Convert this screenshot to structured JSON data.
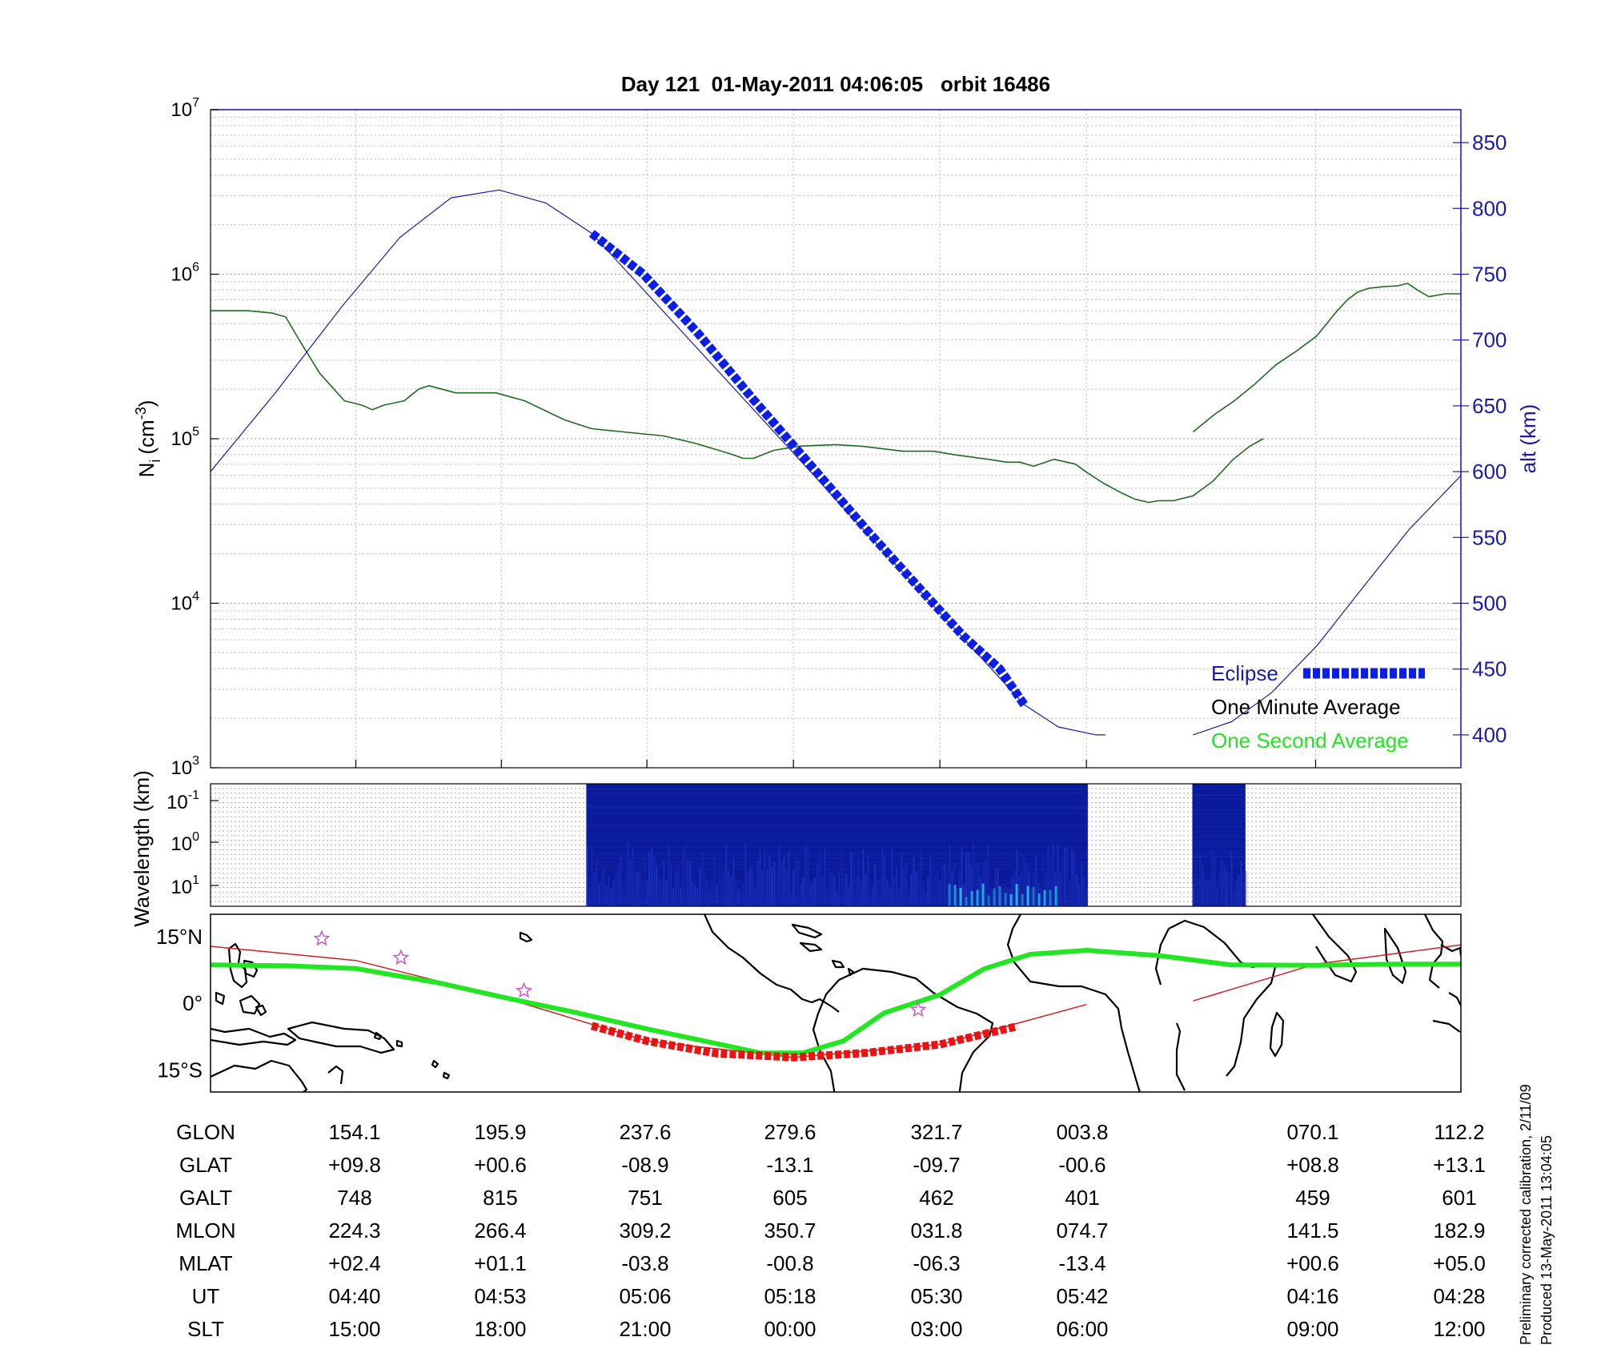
{
  "title": "Day 121  01-May-2011 04:06:05   orbit 16486",
  "colors": {
    "altitude": "#1a1aaa",
    "eclipse": "#0a1ee6",
    "ion_density": "#1f6b1f",
    "one_second": "#22e622",
    "track": "#cc2222",
    "track_eclipse": "#ee1111",
    "spectrogram": "#0a1a9a",
    "star": "#cc55cc"
  },
  "chart_data": [
    {
      "type": "line",
      "name": "density-altitude-panel",
      "ylabel_main": "N",
      "ylabel_sub": "i",
      "ylabel_unit": "(cm",
      "ylabel_exp": "-3",
      "ylabel_close": ")",
      "ylabel_right": "alt (km)",
      "y_scale": "log",
      "ylim": [
        1000,
        10000000
      ],
      "y_ticks": [
        {
          "base": "10",
          "exp": "3",
          "value": 1000
        },
        {
          "base": "10",
          "exp": "4",
          "value": 10000
        },
        {
          "base": "10",
          "exp": "5",
          "value": 100000
        },
        {
          "base": "10",
          "exp": "6",
          "value": 1000000
        },
        {
          "base": "10",
          "exp": "7",
          "value": 10000000
        }
      ],
      "y2lim": [
        375,
        875
      ],
      "y2_ticks": [
        "400",
        "450",
        "500",
        "550",
        "600",
        "650",
        "700",
        "750",
        "800",
        "850"
      ],
      "x_ticks_fraction": [
        0.1162,
        0.2326,
        0.349,
        0.4662,
        0.5833,
        0.7005,
        0.8838
      ],
      "grid": true,
      "series": [
        {
          "name": "Eclipse",
          "axis": "right",
          "style": "thick-dashed",
          "points": [
            [
              0.3049,
              781
            ],
            [
              0.3461,
              750
            ],
            [
              0.39,
              705
            ],
            [
              0.4339,
              655
            ],
            [
              0.4753,
              610
            ],
            [
              0.5255,
              555
            ],
            [
              0.5683,
              510
            ],
            [
              0.6021,
              475
            ],
            [
              0.6313,
              450
            ],
            [
              0.6507,
              423
            ]
          ]
        },
        {
          "name": "altitude",
          "axis": "right",
          "style": "thin",
          "segments": [
            [
              [
                0.0,
                600
              ],
              [
                0.0519,
                660
              ],
              [
                0.1047,
                725
              ],
              [
                0.1515,
                778
              ],
              [
                0.1924,
                808
              ],
              [
                0.2307,
                814
              ],
              [
                0.2684,
                804
              ],
              [
                0.3049,
                781
              ],
              [
                0.6507,
                423
              ],
              [
                0.678,
                406
              ],
              [
                0.708,
                400
              ],
              [
                0.7157,
                400
              ]
            ],
            [
              [
                0.7858,
                400
              ],
              [
                0.8165,
                410
              ],
              [
                0.8485,
                432
              ],
              [
                0.8851,
                468
              ],
              [
                0.9216,
                512
              ],
              [
                0.9586,
                556
              ],
              [
                1.0,
                597
              ]
            ]
          ]
        },
        {
          "name": "ion-density",
          "axis": "left",
          "style": "thin",
          "segments": [
            [
              [
                0.0,
                600000
              ],
              [
                0.0296,
                600000
              ],
              [
                0.0494,
                580000
              ],
              [
                0.0601,
                550000
              ],
              [
                0.0708,
                400000
              ],
              [
                0.0873,
                250000
              ],
              [
                0.1071,
                170000
              ],
              [
                0.1211,
                160000
              ],
              [
                0.1294,
                150000
              ],
              [
                0.1384,
                160000
              ],
              [
                0.1549,
                170000
              ],
              [
                0.1664,
                200000
              ],
              [
                0.1747,
                210000
              ],
              [
                0.1961,
                190000
              ],
              [
                0.2282,
                190000
              ],
              [
                0.2512,
                170000
              ],
              [
                0.2833,
                130000
              ],
              [
                0.3049,
                115000
              ],
              [
                0.3303,
                110000
              ],
              [
                0.3624,
                104000
              ],
              [
                0.3871,
                94000
              ],
              [
                0.4044,
                86000
              ],
              [
                0.4176,
                80000
              ],
              [
                0.4259,
                76000
              ],
              [
                0.4341,
                76000
              ],
              [
                0.4505,
                85000
              ],
              [
                0.47,
                90000
              ],
              [
                0.5,
                92000
              ],
              [
                0.5214,
                90000
              ],
              [
                0.5535,
                84000
              ],
              [
                0.5782,
                84000
              ],
              [
                0.5947,
                80000
              ],
              [
                0.6219,
                75000
              ],
              [
                0.6367,
                72000
              ],
              [
                0.6474,
                72000
              ],
              [
                0.6581,
                68000
              ],
              [
                0.6746,
                75000
              ],
              [
                0.6919,
                70000
              ],
              [
                0.7,
                63000
              ],
              [
                0.7135,
                54000
              ],
              [
                0.7282,
                47000
              ],
              [
                0.7389,
                43000
              ],
              [
                0.7504,
                41000
              ],
              [
                0.7582,
                42000
              ],
              [
                0.7702,
                42000
              ],
              [
                0.7858,
                45000
              ],
              [
                0.8014,
                55000
              ],
              [
                0.8179,
                75000
              ],
              [
                0.8311,
                90000
              ],
              [
                0.8419,
                100000
              ]
            ],
            [
              [
                0.7858,
                110000
              ],
              [
                0.8026,
                140000
              ],
              [
                0.8188,
                170000
              ],
              [
                0.8352,
                215000
              ],
              [
                0.8517,
                280000
              ],
              [
                0.8682,
                340000
              ],
              [
                0.8846,
                420000
              ],
              [
                0.9011,
                600000
              ],
              [
                0.9093,
                700000
              ],
              [
                0.9176,
                780000
              ],
              [
                0.9258,
                820000
              ],
              [
                0.9382,
                840000
              ],
              [
                0.9496,
                850000
              ],
              [
                0.9573,
                880000
              ],
              [
                0.9654,
                800000
              ],
              [
                0.9744,
                730000
              ],
              [
                0.9876,
                760000
              ],
              [
                1.0,
                760000
              ]
            ]
          ]
        }
      ],
      "legend": {
        "placement": "bottom-right",
        "eclipse": "Eclipse",
        "one_minute": "One Minute Average",
        "one_second": "One Second Average"
      }
    },
    {
      "type": "heatmap",
      "name": "wavelength-spectrogram",
      "ylabel": "Wavelength (km)",
      "y_scale": "log",
      "y_ticks": [
        {
          "base": "10",
          "exp": "-1"
        },
        {
          "base": "10",
          "exp": "0"
        },
        {
          "base": "10",
          "exp": "1"
        }
      ],
      "data_spans": [
        [
          0.3005,
          0.7016
        ],
        [
          0.7852,
          0.8277
        ]
      ],
      "grid": true
    },
    {
      "type": "line",
      "name": "ground-track-map",
      "y_ticks": [
        "15°N",
        "0°",
        "15°S"
      ],
      "ylim": [
        -20,
        20
      ],
      "series": [
        {
          "name": "ground-track",
          "style": "thin",
          "segments": [
            [
              [
                0.0,
                12.8
              ],
              [
                0.1162,
                9.6
              ],
              [
                0.2326,
                1.4
              ],
              [
                0.349,
                -8.5
              ],
              [
                0.4662,
                -12.2
              ],
              [
                0.5833,
                -9.3
              ],
              [
                0.7005,
                -0.3
              ]
            ],
            [
              [
                0.7858,
                0.5
              ],
              [
                0.8838,
                8.8
              ],
              [
                1.0,
                13.1
              ]
            ]
          ]
        },
        {
          "name": "ground-track-eclipse",
          "style": "thick-dashed",
          "points": [
            [
              0.3049,
              -5.1
            ],
            [
              0.349,
              -8.5
            ],
            [
              0.4045,
              -11.3
            ],
            [
              0.4662,
              -12.2
            ],
            [
              0.5241,
              -11.2
            ],
            [
              0.5833,
              -9.3
            ],
            [
              0.6454,
              -5.2
            ]
          ]
        },
        {
          "name": "One Second Average",
          "style": "thick",
          "points": [
            [
              0.0,
              8.6
            ],
            [
              0.0617,
              8.4
            ],
            [
              0.1162,
              7.8
            ],
            [
              0.1836,
              4.5
            ],
            [
              0.2326,
              1.4
            ],
            [
              0.2902,
              -2.0
            ],
            [
              0.349,
              -5.8
            ],
            [
              0.4078,
              -9.3
            ],
            [
              0.4395,
              -11.2
            ],
            [
              0.4736,
              -11.2
            ],
            [
              0.5062,
              -8.5
            ],
            [
              0.5388,
              -2.2
            ],
            [
              0.5833,
              1.9
            ],
            [
              0.6185,
              7.7
            ],
            [
              0.6556,
              11.0
            ],
            [
              0.7008,
              11.9
            ],
            [
              0.7587,
              10.7
            ],
            [
              0.8166,
              8.6
            ],
            [
              0.8838,
              8.5
            ],
            [
              0.9465,
              8.8
            ],
            [
              1.0,
              8.8
            ]
          ]
        }
      ],
      "markers": [
        [
          0.0889,
          14.5
        ],
        [
          0.1523,
          10.2
        ],
        [
          0.2507,
          2.8
        ],
        [
          0.5659,
          -1.5
        ]
      ]
    }
  ],
  "ephemeris": {
    "labels": [
      "GLON",
      "GLAT",
      "GALT",
      "MLON",
      "MLAT",
      "UT",
      "SLT"
    ],
    "columns": [
      [
        "154.1",
        "+09.8",
        "748",
        "224.3",
        "+02.4",
        "04:40",
        "15:00"
      ],
      [
        "195.9",
        "+00.6",
        "815",
        "266.4",
        "+01.1",
        "04:53",
        "18:00"
      ],
      [
        "237.6",
        "-08.9",
        "751",
        "309.2",
        "-03.8",
        "05:06",
        "21:00"
      ],
      [
        "279.6",
        "-13.1",
        "605",
        "350.7",
        "-00.8",
        "05:18",
        "00:00"
      ],
      [
        "321.7",
        "-09.7",
        "462",
        "031.8",
        "-06.3",
        "05:30",
        "03:00"
      ],
      [
        "003.8",
        "-00.6",
        "401",
        "074.7",
        "-13.4",
        "05:42",
        "06:00"
      ],
      [
        "070.1",
        "+08.8",
        "459",
        "141.5",
        "+00.6",
        "04:16",
        "09:00"
      ],
      [
        "112.2",
        "+13.1",
        "601",
        "182.9",
        "+05.0",
        "04:28",
        "12:00"
      ]
    ]
  },
  "footer": {
    "line1": "Preliminary corrected calibration, 2/11/09",
    "line2": "Produced 13-May-2011 13:04:05"
  }
}
